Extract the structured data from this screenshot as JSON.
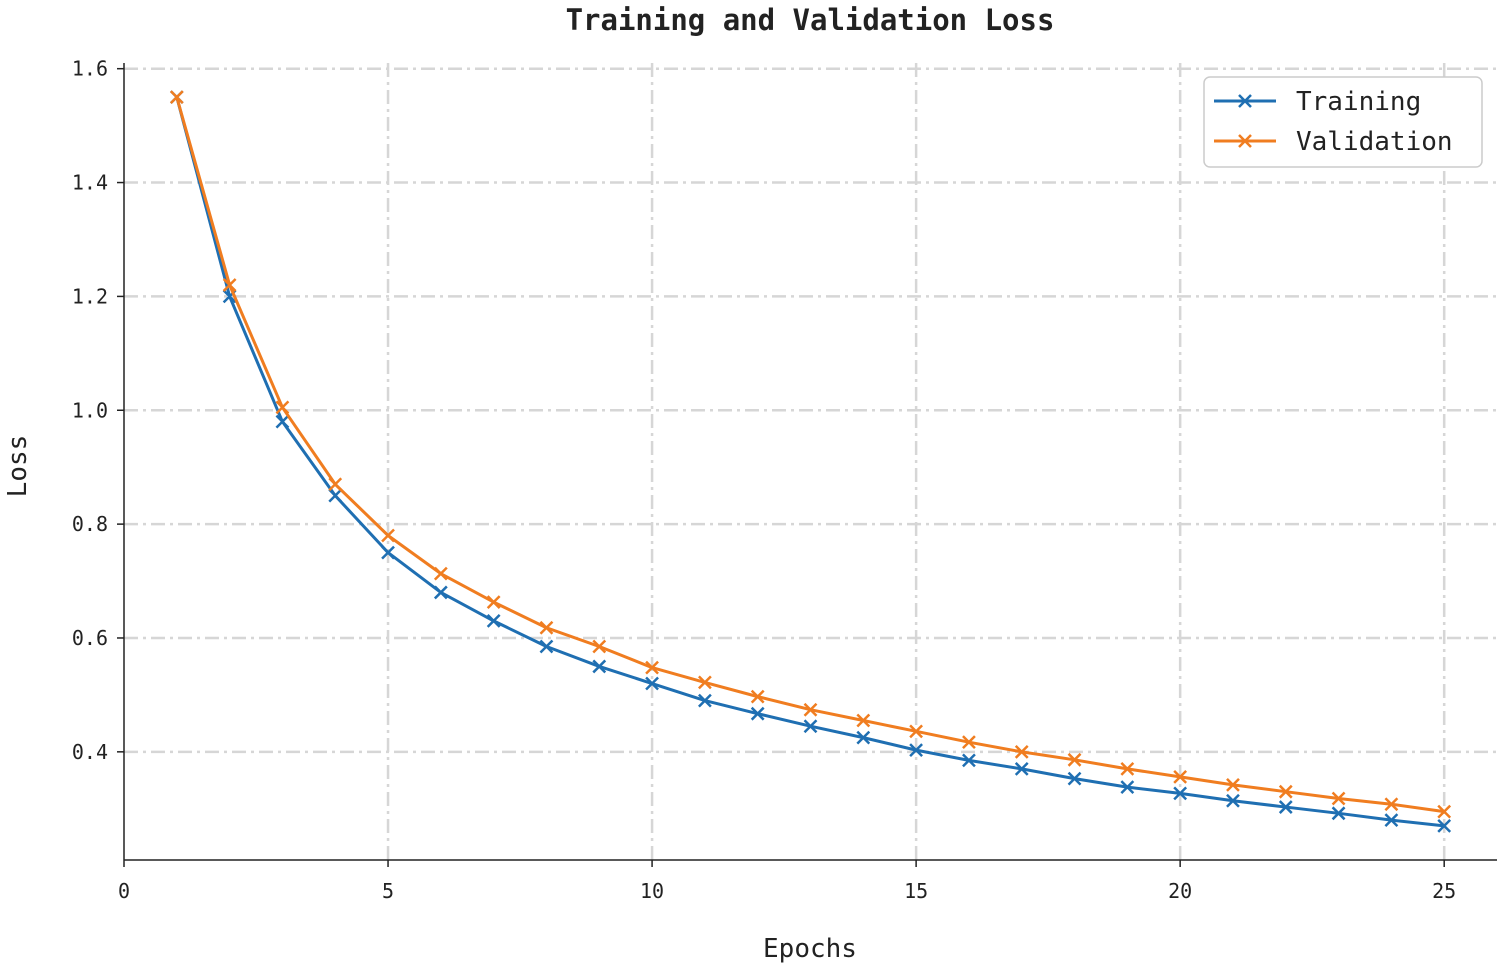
{
  "chart_data": {
    "type": "line",
    "title": "Training and Validation Loss",
    "xlabel": "Epochs",
    "ylabel": "Loss",
    "xlim": [
      0,
      26
    ],
    "ylim": [
      0.21,
      1.61
    ],
    "xticks": [
      0,
      5,
      10,
      15,
      20,
      25
    ],
    "yticks": [
      0.4,
      0.6,
      0.8,
      1.0,
      1.2,
      1.4,
      1.6
    ],
    "xtick_labels": [
      "0",
      "5",
      "10",
      "15",
      "20",
      "25"
    ],
    "ytick_labels": [
      "0.4",
      "0.6",
      "0.8",
      "1.0",
      "1.2",
      "1.4",
      "1.6"
    ],
    "grid": true,
    "legend_position": "top-right",
    "marker": "x",
    "x": [
      1,
      2,
      3,
      4,
      5,
      6,
      7,
      8,
      9,
      10,
      11,
      12,
      13,
      14,
      15,
      16,
      17,
      18,
      19,
      20,
      21,
      22,
      23,
      24,
      25
    ],
    "series": [
      {
        "name": "Training",
        "color": "#1f6fb2",
        "values": [
          1.55,
          1.2,
          0.98,
          0.85,
          0.75,
          0.68,
          0.63,
          0.585,
          0.55,
          0.52,
          0.49,
          0.467,
          0.445,
          0.425,
          0.403,
          0.385,
          0.37,
          0.353,
          0.338,
          0.327,
          0.314,
          0.303,
          0.292,
          0.28,
          0.27
        ]
      },
      {
        "name": "Validation",
        "color": "#f07d20",
        "values": [
          1.55,
          1.22,
          1.005,
          0.87,
          0.78,
          0.713,
          0.663,
          0.618,
          0.585,
          0.548,
          0.522,
          0.497,
          0.474,
          0.455,
          0.436,
          0.417,
          0.4,
          0.386,
          0.37,
          0.356,
          0.342,
          0.33,
          0.318,
          0.308,
          0.295
        ]
      }
    ]
  }
}
